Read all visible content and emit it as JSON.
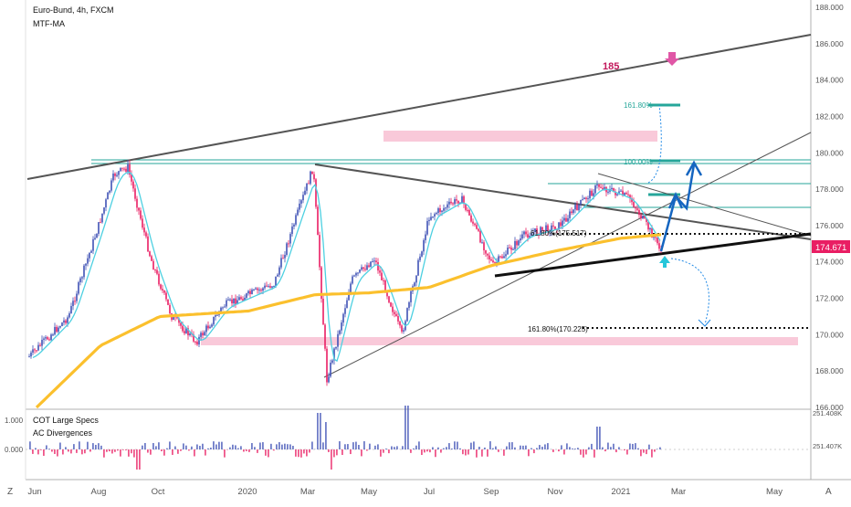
{
  "header": {
    "symbol": "Euro-Bund, 4h, FXCM",
    "indicator": "MTF-MA"
  },
  "price_panel": {
    "y_ticks": [
      "188.000",
      "186.000",
      "184.000",
      "182.000",
      "180.000",
      "178.000",
      "176.000",
      "174.000",
      "172.000",
      "170.000",
      "168.000",
      "166.000"
    ],
    "last_price": "174.671",
    "last_price_color": "#e91e63"
  },
  "x_axis": {
    "labels": [
      "Jun",
      "Aug",
      "Oct",
      "2020",
      "Mar",
      "May",
      "Jul",
      "Sep",
      "Nov",
      "2021",
      "Mar",
      "May"
    ]
  },
  "annotations": {
    "target_label": "185",
    "fib_upper": "161.80%",
    "fib_mid": "100.00%",
    "fib_618": "61.80%(175.517)",
    "fib_lower": "161.80%(170.225)"
  },
  "lower_panel": {
    "title": "COT Large Specs",
    "subtitle": "AC Divergences",
    "y_left": [
      "1.000",
      "0.000"
    ],
    "y_right": [
      "251.408K",
      "251.407K"
    ]
  },
  "footer": {
    "left_mark": "Z",
    "right_mark": "A"
  },
  "colors": {
    "price_bull": "#3f51b5",
    "price_bear": "#e91e63",
    "ma_fast": "#4dd0e1",
    "ma_slow": "#fbc02d",
    "trend_lines": "#616161",
    "fib_lines": "#26a69a",
    "pink_zone": "#f8bbd0",
    "arrow_blue": "#1565c0",
    "arrow_pink": "#e056a6",
    "arrow_teal": "#26c6da",
    "target_text": "#c2185b"
  },
  "chart_data": {
    "type": "line",
    "title": "Euro-Bund, 4h, FXCM",
    "x_labels": [
      "Jun",
      "Aug",
      "Oct",
      "2020",
      "Mar",
      "May",
      "Jul",
      "Sep",
      "Nov",
      "2021",
      "Mar",
      "May"
    ],
    "ylim": [
      166,
      188
    ],
    "last_price": 174.671,
    "series": [
      {
        "name": "Euro-Bund",
        "points": [
          [
            "Jun",
            168.8
          ],
          [
            "Jul",
            171.0
          ],
          [
            "Aug",
            176.0
          ],
          [
            "Aug",
            178.8
          ],
          [
            "Sep",
            179.2
          ],
          [
            "Oct",
            174.2
          ],
          [
            "Oct",
            171.0
          ],
          [
            "Nov",
            169.6
          ],
          [
            "Dec",
            171.6
          ],
          [
            "2020",
            172.2
          ],
          [
            "Jan",
            172.8
          ],
          [
            "Feb",
            175.8
          ],
          [
            "Mar",
            179.2
          ],
          [
            "Mar",
            167.5
          ],
          [
            "Apr",
            173.0
          ],
          [
            "May",
            174.2
          ],
          [
            "Jun",
            170.0
          ],
          [
            "Jul",
            176.5
          ],
          [
            "Aug",
            177.5
          ],
          [
            "Sep",
            173.8
          ],
          [
            "Oct",
            175.5
          ],
          [
            "Nov",
            176.0
          ],
          [
            "Dec",
            178.2
          ],
          [
            "2021",
            177.5
          ],
          [
            "Feb",
            175.2
          ],
          [
            "Feb",
            174.671
          ]
        ]
      },
      {
        "name": "MTF-MA",
        "points": [
          [
            "Jun",
            166.0
          ],
          [
            "Aug",
            169.4
          ],
          [
            "Oct",
            171.0
          ],
          [
            "2020",
            171.3
          ],
          [
            "Mar",
            172.2
          ],
          [
            "May",
            172.3
          ],
          [
            "Jul",
            172.6
          ],
          [
            "Sep",
            173.8
          ],
          [
            "Nov",
            174.6
          ],
          [
            "2021",
            175.3
          ],
          [
            "Feb",
            175.5
          ]
        ]
      }
    ],
    "levels": [
      {
        "label": "61.80%(175.517)",
        "value": 175.517
      },
      {
        "label": "161.80%(170.225)",
        "value": 170.225
      },
      {
        "label": "100.00%",
        "value": 179.5
      },
      {
        "label": "161.80%",
        "value": 182.5
      }
    ],
    "grid": false
  }
}
